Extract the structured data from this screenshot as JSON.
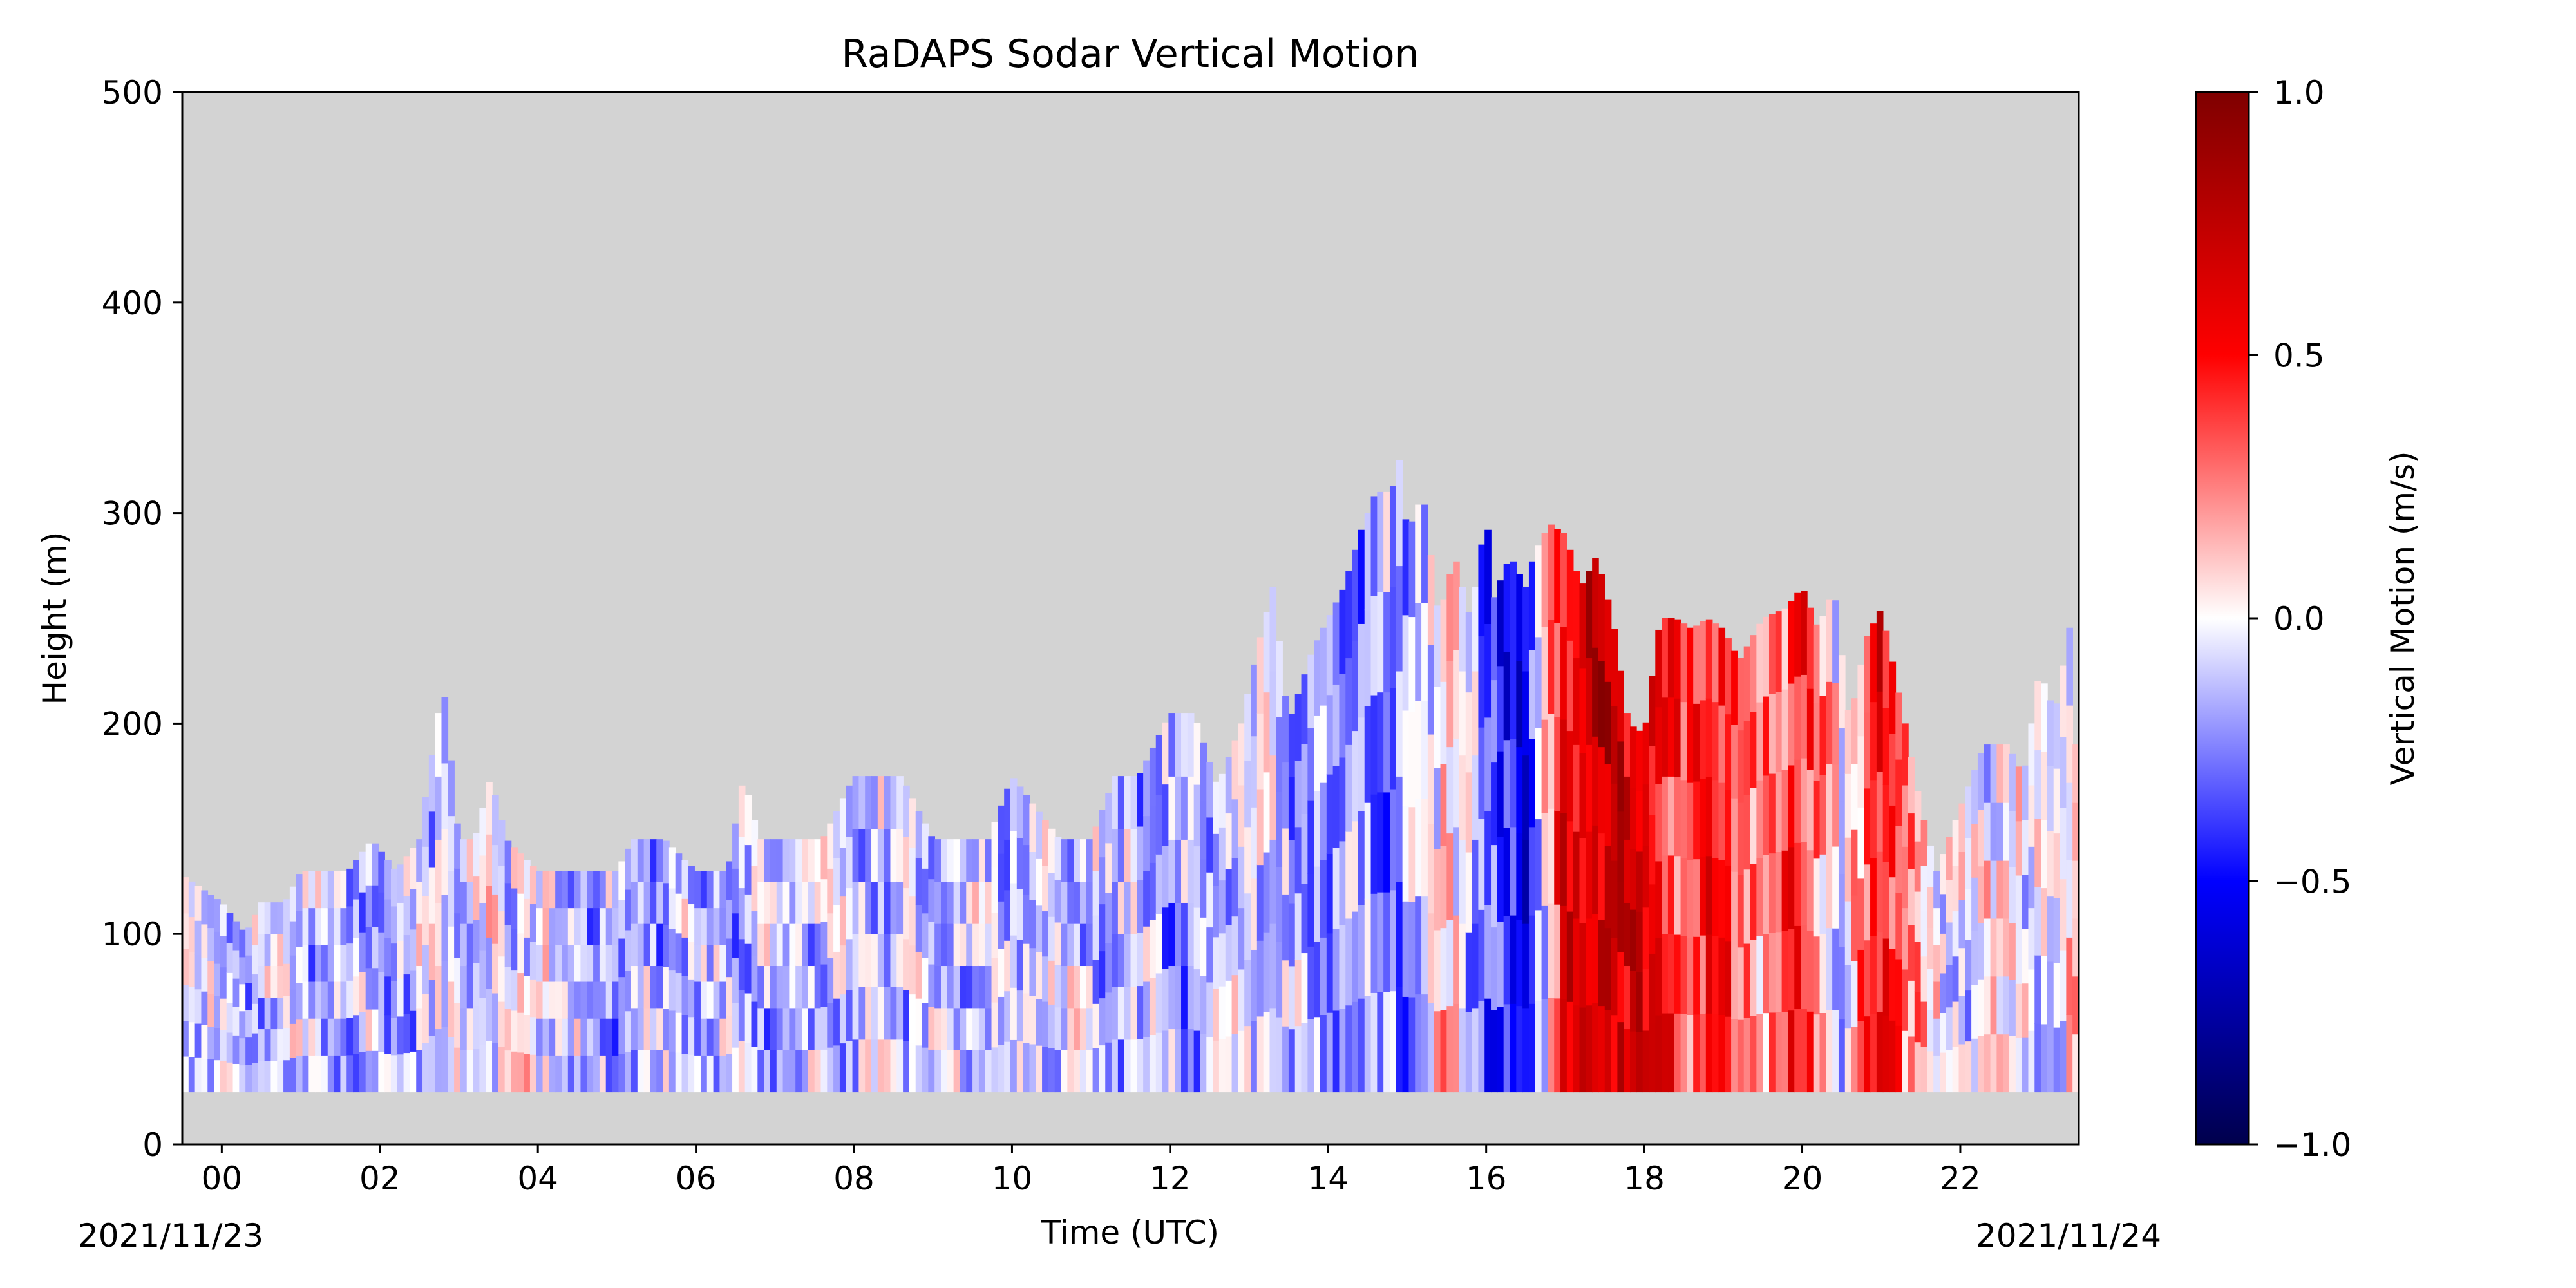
{
  "chart_data": {
    "type": "heatmap",
    "title": "RaDAPS Sodar Vertical Motion",
    "xlabel": "Time (UTC)",
    "ylabel": "Height (m)",
    "x_date_start": "2021/11/23",
    "x_date_end": "2021/11/24",
    "xlim_hours": [
      -0.5,
      23.5
    ],
    "ylim": [
      0,
      500
    ],
    "x_ticks": [
      0,
      2,
      4,
      6,
      8,
      10,
      12,
      14,
      16,
      18,
      20,
      22
    ],
    "x_tick_labels": [
      "00",
      "02",
      "04",
      "06",
      "08",
      "10",
      "12",
      "14",
      "16",
      "18",
      "20",
      "22"
    ],
    "y_ticks": [
      0,
      100,
      200,
      300,
      400,
      500
    ],
    "y_tick_labels": [
      "0",
      "100",
      "200",
      "300",
      "400",
      "500"
    ],
    "background_color": "#d3d3d3",
    "lowest_gate_m": 25,
    "colorbar": {
      "label": "Vertical Motion (m/s)",
      "colormap": "seismic",
      "range": [
        -1.0,
        1.0
      ],
      "ticks": [
        -1.0,
        -0.5,
        0.0,
        0.5,
        1.0
      ],
      "tick_labels": [
        "−1.0",
        "−0.5",
        "0.0",
        "0.5",
        "1.0"
      ],
      "stops": [
        "#00004c",
        "#0000ff",
        "#ffffff",
        "#ff0000",
        "#7f0000"
      ]
    },
    "top_of_data_m": {
      "hours": [
        -0.5,
        0.0,
        0.3,
        0.5,
        0.8,
        1.0,
        1.6,
        1.9,
        2.2,
        2.5,
        2.7,
        2.8,
        3.0,
        3.2,
        3.4,
        3.6,
        4.0,
        4.5,
        5.0,
        5.2,
        5.6,
        6.0,
        6.4,
        6.6,
        6.8,
        7.3,
        7.6,
        8.0,
        8.6,
        9.0,
        9.7,
        10.0,
        10.6,
        11.0,
        11.3,
        11.6,
        12.0,
        12.3,
        12.6,
        12.9,
        13.1,
        13.3,
        13.5,
        13.8,
        14.0,
        14.2,
        14.4,
        14.6,
        14.8,
        14.9,
        15.0,
        15.2,
        15.4,
        15.6,
        15.8,
        16.0,
        16.1,
        16.3,
        16.5,
        16.6,
        16.8,
        17.0,
        17.2,
        17.4,
        17.6,
        17.8,
        18.0,
        18.2,
        18.4,
        18.6,
        18.8,
        19.0,
        19.2,
        19.5,
        19.8,
        20.0,
        20.2,
        20.4,
        20.6,
        20.8,
        21.0,
        21.3,
        21.5,
        21.7,
        22.0,
        22.3,
        22.6,
        22.8,
        23.0,
        23.2,
        23.4,
        23.5
      ],
      "heights": [
        128,
        115,
        100,
        115,
        115,
        130,
        130,
        145,
        130,
        145,
        195,
        220,
        145,
        145,
        175,
        145,
        130,
        130,
        130,
        145,
        145,
        130,
        130,
        175,
        145,
        145,
        145,
        175,
        175,
        145,
        145,
        175,
        145,
        145,
        175,
        175,
        205,
        205,
        170,
        200,
        235,
        265,
        200,
        235,
        250,
        265,
        290,
        310,
        310,
        325,
        290,
        310,
        250,
        280,
        250,
        300,
        260,
        280,
        265,
        280,
        295,
        290,
        265,
        280,
        250,
        200,
        195,
        250,
        250,
        245,
        250,
        245,
        230,
        250,
        255,
        265,
        245,
        265,
        200,
        240,
        255,
        200,
        160,
        130,
        160,
        190,
        190,
        175,
        225,
        205,
        250,
        150
      ]
    },
    "mean_w_by_hour": {
      "hours": [
        -0.5,
        0,
        1,
        2,
        3,
        4,
        5,
        6,
        7,
        8,
        9,
        10,
        11,
        12,
        13,
        14,
        15,
        15.5,
        16,
        16.5,
        17,
        17.5,
        18,
        18.5,
        19,
        19.5,
        20,
        20.5,
        21,
        21.5,
        22,
        22.5,
        23,
        23.5
      ],
      "values": [
        -0.08,
        -0.12,
        -0.1,
        -0.18,
        -0.08,
        -0.02,
        -0.2,
        -0.12,
        -0.15,
        -0.12,
        -0.1,
        -0.08,
        -0.1,
        -0.2,
        -0.05,
        -0.25,
        -0.2,
        0.15,
        -0.3,
        -0.5,
        0.55,
        0.75,
        0.6,
        0.35,
        0.45,
        0.2,
        0.5,
        -0.1,
        0.55,
        0.15,
        -0.1,
        0.05,
        -0.05,
        0.05
      ]
    }
  }
}
